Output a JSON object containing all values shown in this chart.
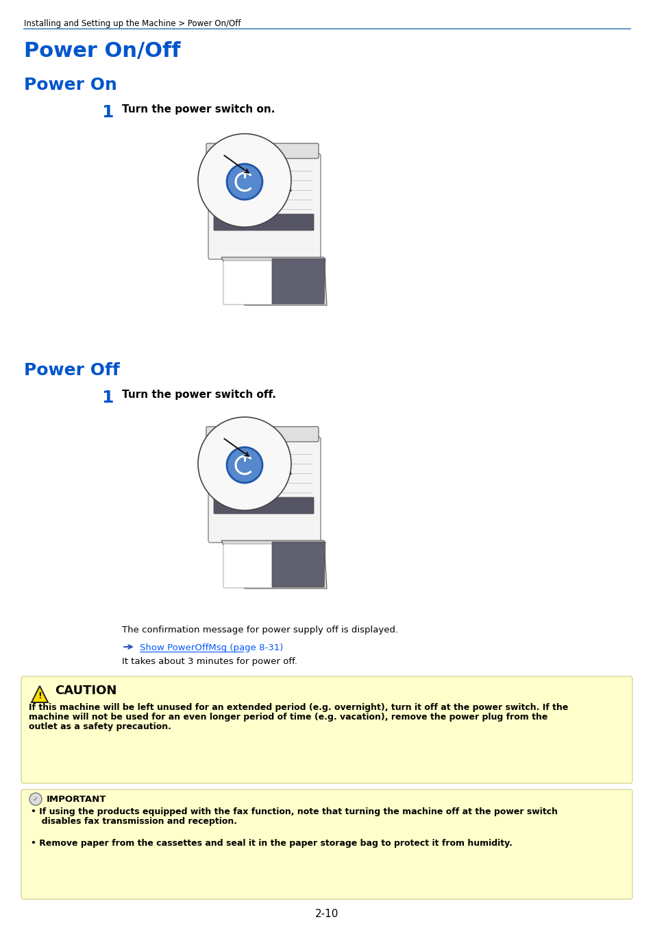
{
  "page_background": "#ffffff",
  "breadcrumb": "Installing and Setting up the Machine > Power On/Off",
  "breadcrumb_color": "#000000",
  "breadcrumb_fontsize": 8.5,
  "separator_color": "#6699cc",
  "title_main": "Power On/Off",
  "title_main_color": "#0055cc",
  "title_main_fontsize": 22,
  "title_power_on": "Power On",
  "title_power_on_color": "#0055cc",
  "title_power_on_fontsize": 18,
  "step1_number": "1",
  "step1_on_text": "Turn the power switch on.",
  "step1_off_text": "Turn the power switch off.",
  "step_number_color": "#0055cc",
  "step_number_fontsize": 18,
  "step_text_fontsize": 11,
  "title_power_off": "Power Off",
  "title_power_off_color": "#0055cc",
  "title_power_off_fontsize": 18,
  "body_text_fontsize": 9.5,
  "confirm_msg": "The confirmation message for power supply off is displayed.",
  "link_color": "#0055ff",
  "link_text": "Show PowerOffMsg (page 8-31)",
  "takes_text": "It takes about 3 minutes for power off.",
  "caution_bg": "#ffffcc",
  "caution_border": "#cccc88",
  "caution_title": "CAUTION",
  "caution_title_fontsize": 13,
  "caution_body_line1": "If this machine will be left unused for an extended period (e.g. overnight), turn it off at the power switch. If the",
  "caution_body_line2": "machine will not be used for an even longer period of time (e.g. vacation), remove the power plug from the",
  "caution_body_line3": "outlet as a safety precaution.",
  "caution_body_fontsize": 9,
  "important_title": "IMPORTANT",
  "important_title_fontsize": 9.5,
  "important_bullet1_line1": "If using the products equipped with the fax function, note that turning the machine off at the power switch",
  "important_bullet1_line2": "  disables fax transmission and reception.",
  "important_bullet2": "Remove paper from the cassettes and seal it in the paper storage bag to protect it from humidity.",
  "important_fontsize": 9,
  "page_number": "2-10",
  "page_number_fontsize": 11,
  "arrow_color": "#3355bb",
  "switch_color": "#5588cc"
}
